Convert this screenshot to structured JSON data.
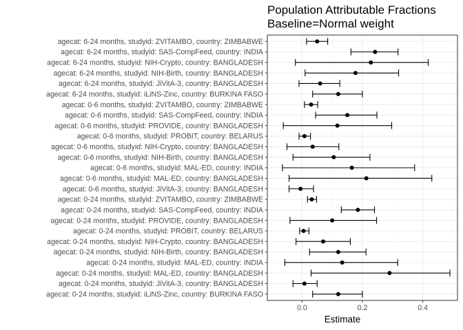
{
  "chart_data": {
    "type": "forest",
    "title": "Population Attributable Fractions",
    "subtitle": "Baseline=Normal weight",
    "xlabel": "Estimate",
    "ylabel": "",
    "xlim": [
      -0.115,
      0.515
    ],
    "xticks": [
      0.0,
      0.2,
      0.4
    ],
    "xtick_labels": [
      "0.0",
      "0.2",
      "0.4"
    ],
    "grid": true,
    "theme": "bw",
    "rows": [
      {
        "label": "agecat: 6-24 months, studyid: ZVITAMBO, country: ZIMBABWE",
        "estimate": 0.05,
        "lower": 0.015,
        "upper": 0.085
      },
      {
        "label": "agecat: 6-24 months, studyid: SAS-CompFeed, country: INDIA",
        "estimate": 0.242,
        "lower": 0.162,
        "upper": 0.318
      },
      {
        "label": "agecat: 6-24 months, studyid: NIH-Crypto, country: BANGLADESH",
        "estimate": 0.228,
        "lower": -0.022,
        "upper": 0.418
      },
      {
        "label": "agecat: 6-24 months, studyid: NIH-Birth, country: BANGLADESH",
        "estimate": 0.177,
        "lower": 0.01,
        "upper": 0.32
      },
      {
        "label": "agecat: 6-24 months, studyid: JiVitA-3, country: BANGLADESH",
        "estimate": 0.06,
        "lower": -0.01,
        "upper": 0.125
      },
      {
        "label": "agecat: 6-24 months, studyid: iLiNS-Zinc, country: BURKINA FASO",
        "estimate": 0.12,
        "lower": 0.035,
        "upper": 0.2
      },
      {
        "label": "agecat: 0-6 months, studyid: ZVITAMBO, country: ZIMBABWE",
        "estimate": 0.03,
        "lower": 0.008,
        "upper": 0.052
      },
      {
        "label": "agecat: 0-6 months, studyid: SAS-CompFeed, country: INDIA",
        "estimate": 0.15,
        "lower": 0.045,
        "upper": 0.248
      },
      {
        "label": "agecat: 0-6 months, studyid: PROVIDE, country: BANGLADESH",
        "estimate": 0.117,
        "lower": -0.062,
        "upper": 0.297
      },
      {
        "label": "agecat: 0-6 months, studyid: PROBIT, country: BELARUS",
        "estimate": 0.008,
        "lower": -0.01,
        "upper": 0.028
      },
      {
        "label": "agecat: 0-6 months, studyid: NIH-Crypto, country: BANGLADESH",
        "estimate": 0.035,
        "lower": -0.05,
        "upper": 0.122
      },
      {
        "label": "agecat: 0-6 months, studyid: NIH-Birth, country: BANGLADESH",
        "estimate": 0.105,
        "lower": -0.03,
        "upper": 0.225
      },
      {
        "label": "agecat: 0-6 months, studyid: MAL-ED, country: INDIA",
        "estimate": 0.165,
        "lower": -0.065,
        "upper": 0.373
      },
      {
        "label": "agecat: 0-6 months, studyid: MAL-ED, country: BANGLADESH",
        "estimate": 0.213,
        "lower": -0.043,
        "upper": 0.43
      },
      {
        "label": "agecat: 0-6 months, studyid: JiVitA-3, country: BANGLADESH",
        "estimate": -0.005,
        "lower": -0.043,
        "upper": 0.038
      },
      {
        "label": "agecat: 0-24 months, studyid: ZVITAMBO, country: ZIMBABWE",
        "estimate": 0.032,
        "lower": 0.018,
        "upper": 0.048
      },
      {
        "label": "agecat: 0-24 months, studyid: SAS-CompFeed, country: INDIA",
        "estimate": 0.185,
        "lower": 0.13,
        "upper": 0.24
      },
      {
        "label": "agecat: 0-24 months, studyid: PROVIDE, country: BANGLADESH",
        "estimate": 0.1,
        "lower": -0.04,
        "upper": 0.247
      },
      {
        "label": "agecat: 0-24 months, studyid: PROBIT, country: BELARUS",
        "estimate": 0.005,
        "lower": -0.008,
        "upper": 0.023
      },
      {
        "label": "agecat: 0-24 months, studyid: NIH-Crypto, country: BANGLADESH",
        "estimate": 0.07,
        "lower": -0.02,
        "upper": 0.16
      },
      {
        "label": "agecat: 0-24 months, studyid: NIH-Birth, country: BANGLADESH",
        "estimate": 0.12,
        "lower": 0.025,
        "upper": 0.212
      },
      {
        "label": "agecat: 0-24 months, studyid: MAL-ED, country: INDIA",
        "estimate": 0.133,
        "lower": -0.057,
        "upper": 0.317
      },
      {
        "label": "agecat: 0-24 months, studyid: MAL-ED, country: BANGLADESH",
        "estimate": 0.29,
        "lower": 0.03,
        "upper": 0.49
      },
      {
        "label": "agecat: 0-24 months, studyid: JiVitA-3, country: BANGLADESH",
        "estimate": 0.008,
        "lower": -0.03,
        "upper": 0.05
      },
      {
        "label": "agecat: 0-24 months, studyid: iLiNS-Zinc, country: BURKINA FASO",
        "estimate": 0.12,
        "lower": 0.035,
        "upper": 0.2
      }
    ],
    "colors": {
      "point": "#000000",
      "errorbar": "#000000",
      "panel_border": "#333333",
      "grid_major": "#ebebeb",
      "grid_minor": "#f5f5f5",
      "tick_text": "#4d4d4d"
    }
  }
}
